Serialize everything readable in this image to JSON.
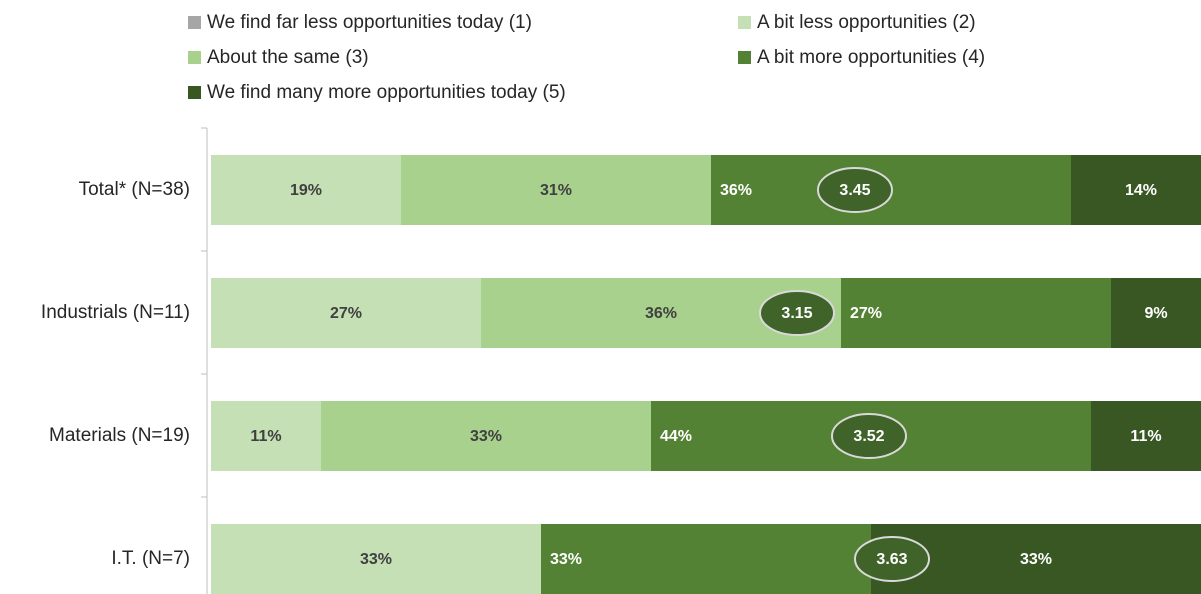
{
  "chart_data": {
    "type": "bar",
    "orientation": "horizontal",
    "stacked": true,
    "categories": [
      "Total* (N=38)",
      "Industrials (N=11)",
      "Materials (N=19)",
      "I.T.  (N=7)"
    ],
    "series": [
      {
        "name": "We find far less opportunities today (1)",
        "color": "#a6a6a6",
        "values": [
          0,
          0,
          0,
          0
        ]
      },
      {
        "name": "A bit less opportunities (2)",
        "color": "#c5e0b4",
        "values": [
          19,
          27,
          11,
          33
        ],
        "value_labels": [
          "19%",
          "27%",
          "11%",
          "33%"
        ]
      },
      {
        "name": "About the same (3)",
        "color": "#a9d18e",
        "values": [
          31,
          36,
          33,
          0
        ],
        "value_labels": [
          "31%",
          "36%",
          "33%",
          null
        ]
      },
      {
        "name": "A bit more opportunities (4)",
        "color": "#548235",
        "values": [
          36,
          27,
          44,
          33
        ],
        "value_labels": [
          "36%",
          "27%",
          "44%",
          "33%"
        ]
      },
      {
        "name": "We find many more opportunities today (5)",
        "color": "#385723",
        "values": [
          14,
          9,
          11,
          33
        ],
        "value_labels": [
          "14%",
          "9%",
          "11%",
          "33%"
        ]
      }
    ],
    "means": [
      3.45,
      3.15,
      3.52,
      3.63
    ],
    "xlim": [
      0,
      100
    ]
  }
}
